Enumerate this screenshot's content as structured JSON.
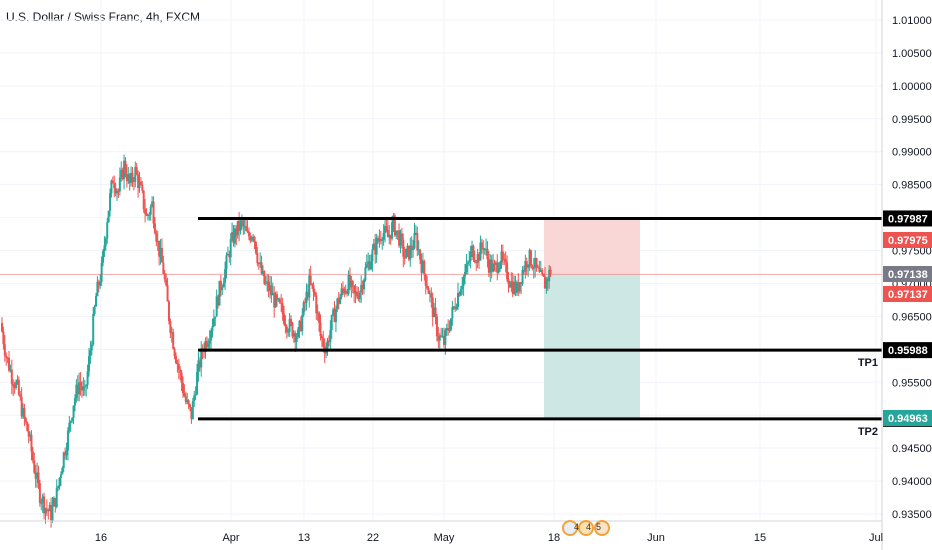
{
  "header": {
    "title": "U.S. Dollar / Swiss Franc, 4h, FXCM"
  },
  "chart_data": {
    "type": "candlestick",
    "symbol": "USDCHF",
    "timeframe": "4h",
    "ylim": [
      0.9335,
      1.0125
    ],
    "y_ticks": [
      "1.01000",
      "1.00500",
      "1.00000",
      "0.99500",
      "0.99000",
      "0.98500",
      "0.98000",
      "0.97500",
      "0.97000",
      "0.96500",
      "0.96000",
      "0.95500",
      "0.95000",
      "0.94500",
      "0.94000",
      "0.93500"
    ],
    "x_ticks": [
      "16",
      "Apr",
      "13",
      "22",
      "May",
      "18",
      "Jun",
      "15",
      "Jul"
    ],
    "candle_colors": {
      "up": "#26a69a",
      "down": "#ef5350"
    },
    "price_path": [
      0.964,
      0.959,
      0.956,
      0.954,
      0.95,
      0.947,
      0.942,
      0.938,
      0.936,
      0.935,
      0.938,
      0.943,
      0.947,
      0.952,
      0.955,
      0.953,
      0.96,
      0.968,
      0.972,
      0.98,
      0.986,
      0.984,
      0.988,
      0.985,
      0.987,
      0.984,
      0.98,
      0.982,
      0.976,
      0.972,
      0.965,
      0.96,
      0.956,
      0.952,
      0.95,
      0.956,
      0.96,
      0.962,
      0.965,
      0.969,
      0.972,
      0.976,
      0.978,
      0.979,
      0.977,
      0.978,
      0.973,
      0.97,
      0.969,
      0.967,
      0.966,
      0.964,
      0.963,
      0.962,
      0.966,
      0.97,
      0.968,
      0.962,
      0.96,
      0.964,
      0.967,
      0.969,
      0.97,
      0.968,
      0.969,
      0.972,
      0.974,
      0.976,
      0.978,
      0.977,
      0.979,
      0.977,
      0.974,
      0.975,
      0.977,
      0.973,
      0.97,
      0.966,
      0.962,
      0.961,
      0.964,
      0.967,
      0.97,
      0.972,
      0.975,
      0.974,
      0.976,
      0.973,
      0.972,
      0.974,
      0.972,
      0.97,
      0.969,
      0.972,
      0.974,
      0.973,
      0.971,
      0.97,
      0.972
    ],
    "levels": [
      {
        "name": "",
        "value": 0.97987,
        "label": "0.97987",
        "label_bg": "#000000"
      },
      {
        "name": "TP1",
        "value": 0.95988,
        "label": "0.95988",
        "label_bg": "#000000"
      },
      {
        "name": "TP2",
        "value": 0.94945,
        "label": "0.94945",
        "label_bg": "#000000"
      }
    ],
    "price_labels": [
      {
        "value": 0.97975,
        "label": "0.97975",
        "bg": "#ef5350",
        "fg": "#ffffff"
      },
      {
        "value": 0.97138,
        "label": "0.97138",
        "bg": "#787b86",
        "fg": "#ffffff"
      },
      {
        "value": 0.97137,
        "label": "0.97137",
        "bg": "#ef5350",
        "fg": "#ffffff"
      },
      {
        "value": 0.94963,
        "label": "0.94963",
        "bg": "#26a69a",
        "fg": "#ffffff"
      }
    ],
    "current_price": 0.97138,
    "position": {
      "side": "short",
      "entry": 0.97138,
      "stop": 0.97975,
      "target": 0.94963,
      "stop_color": "#f9d7d7",
      "target_color": "#cde8e4"
    },
    "grid": true
  }
}
